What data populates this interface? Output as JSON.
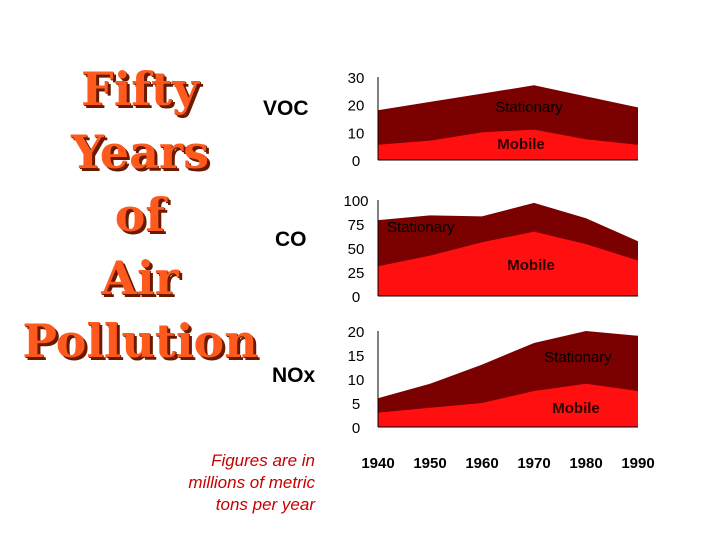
{
  "title_lines": [
    "Fifty",
    "Years",
    "of",
    "Air",
    "Pollution"
  ],
  "note_lines": [
    "Figures are in",
    "millions of metric",
    "tons per year"
  ],
  "colors": {
    "stationary": "#7b0000",
    "mobile": "#ff0f0f",
    "title": "#ff5a1e",
    "note": "#c80000"
  },
  "chart_data": {
    "type": "area",
    "stacked": true,
    "x": [
      1940,
      1950,
      1960,
      1970,
      1980,
      1990
    ],
    "x_ticks": [
      "1940",
      "1950",
      "1960",
      "1970",
      "1980",
      "1990"
    ],
    "panels": [
      {
        "name": "VOC",
        "ylim": [
          0,
          30
        ],
        "yticks": [
          "30",
          "20",
          "10",
          "0"
        ],
        "series": [
          {
            "name": "Mobile",
            "values": [
              5.5,
              7,
              10,
              11,
              7.5,
              5.5
            ]
          },
          {
            "name": "Stationary",
            "values": [
              12.5,
              14,
              14,
              16,
              15.5,
              13.5
            ]
          }
        ]
      },
      {
        "name": "CO",
        "ylim": [
          0,
          100
        ],
        "yticks": [
          "100",
          "75",
          "50",
          "25",
          "0"
        ],
        "series": [
          {
            "name": "Mobile",
            "values": [
              31,
              42,
              56,
              67,
              54,
              37
            ]
          },
          {
            "name": "Stationary",
            "values": [
              48,
              42,
              27,
              30,
              27,
              20
            ]
          }
        ]
      },
      {
        "name": "NOx",
        "ylim": [
          0,
          20
        ],
        "yticks": [
          "20",
          "15",
          "10",
          "5",
          "0"
        ],
        "series": [
          {
            "name": "Mobile",
            "values": [
              3,
              4,
              5,
              7.5,
              9,
              7.5
            ]
          },
          {
            "name": "Stationary",
            "values": [
              3,
              5,
              8,
              10,
              11,
              11.5
            ]
          }
        ]
      }
    ]
  }
}
